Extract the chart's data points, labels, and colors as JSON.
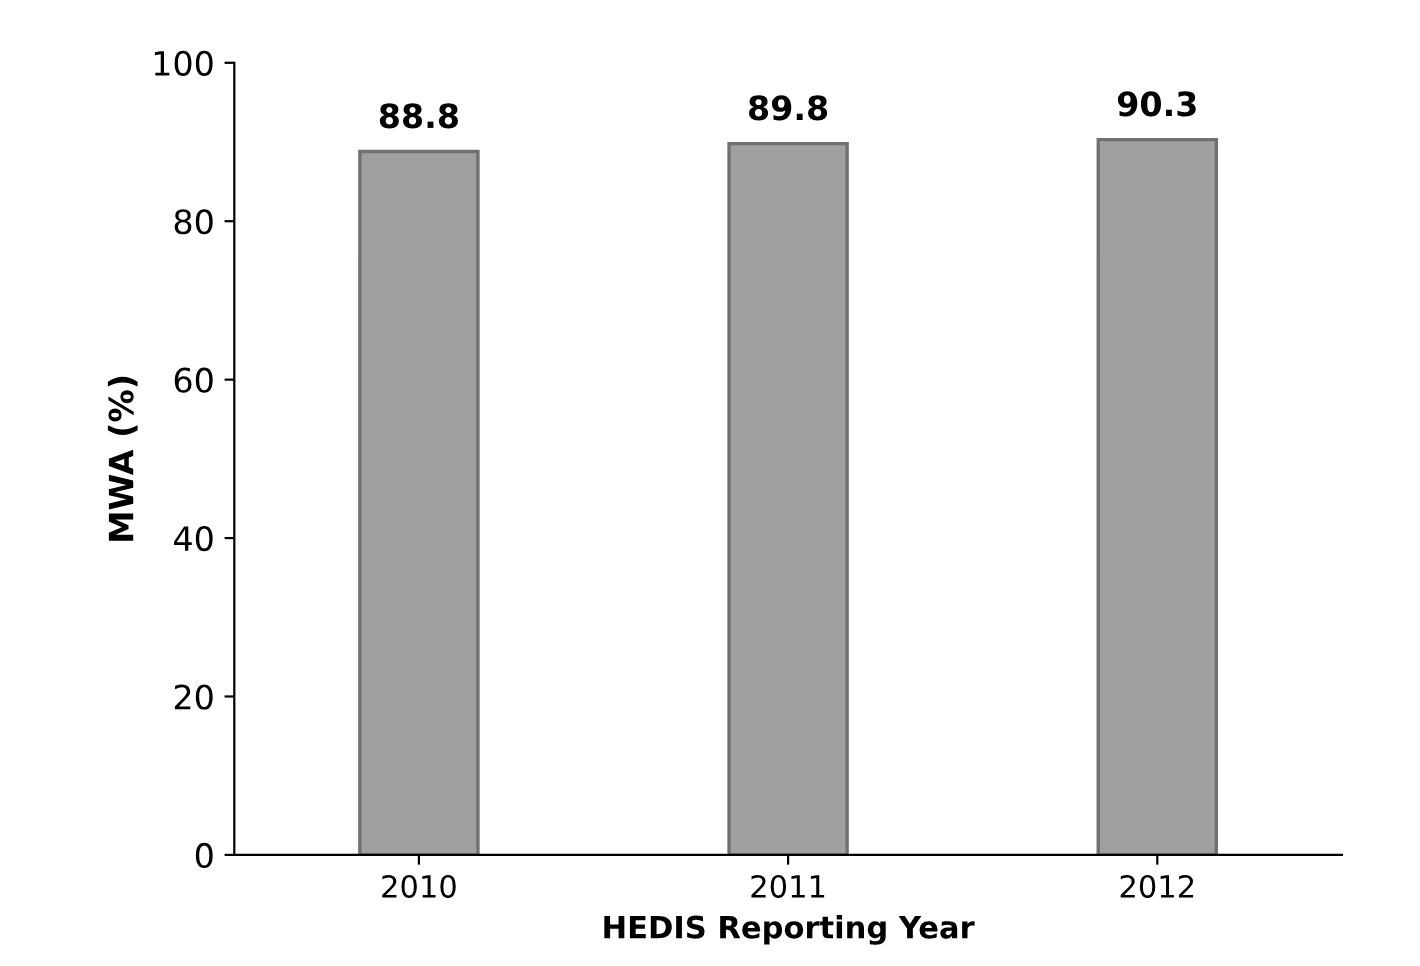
{
  "chart_data": {
    "type": "bar",
    "xlabel": "HEDIS Reporting Year",
    "ylabel": "MWA (%)",
    "categories": [
      "2010",
      "2011",
      "2012"
    ],
    "values": [
      88.8,
      89.8,
      90.3
    ],
    "color": "#a0a0a0",
    "ylim": [
      0,
      100
    ],
    "yticks": [
      0,
      20,
      40,
      60,
      80,
      100
    ],
    "data_labels": true,
    "grid": false,
    "legend": false
  }
}
